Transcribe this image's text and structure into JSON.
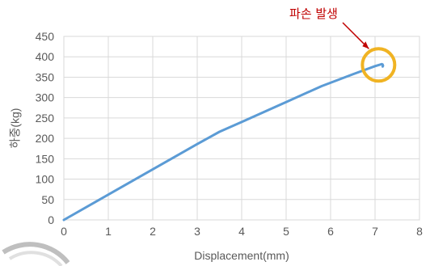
{
  "chart_data": {
    "type": "line",
    "xlabel": "Displacement(mm)",
    "ylabel": "하중(kg)",
    "xlim": [
      0,
      8
    ],
    "ylim": [
      0,
      450
    ],
    "xticks": [
      0,
      1,
      2,
      3,
      4,
      5,
      6,
      7,
      8
    ],
    "yticks": [
      0,
      50,
      100,
      150,
      200,
      250,
      300,
      350,
      400,
      450
    ],
    "grid": true,
    "series": [
      {
        "color": "#5b9bd5",
        "x": [
          0,
          1,
          2,
          3,
          3.5,
          4,
          5,
          5.8,
          6.5,
          7.0,
          7.15,
          7.17,
          7.18,
          7.17
        ],
        "y": [
          0,
          62,
          124,
          186,
          216,
          240,
          289,
          328,
          357,
          377,
          382,
          381,
          378,
          376
        ]
      }
    ],
    "annotation": {
      "text": "파손 발생",
      "x": 7.17,
      "y": 380,
      "marker_color": "#f0b323",
      "text_color": "#c00000"
    }
  }
}
